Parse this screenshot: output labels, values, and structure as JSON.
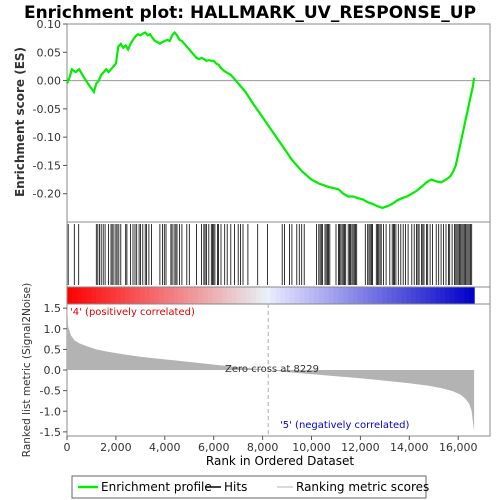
{
  "chart_data": {
    "type": "line",
    "title": "Enrichment plot: HALLMARK_UV_RESPONSE_UP",
    "colors": {
      "es_line": "#00ee00",
      "hit": "#000000",
      "metric_fill": "#b3b3b3",
      "positive_text": "#dd0000",
      "negative_text": "#0000cc"
    },
    "es_panel": {
      "ylabel": "Enrichment score (ES)",
      "ylim": [
        -0.25,
        0.1
      ],
      "yticks": [
        "0.10",
        "0.05",
        "0.00",
        "-0.05",
        "-0.10",
        "-0.15",
        "-0.20"
      ],
      "ytick_values": [
        0.1,
        0.05,
        0.0,
        -0.05,
        -0.1,
        -0.15,
        -0.2
      ],
      "grid": false,
      "series": [
        {
          "name": "Enrichment profile",
          "x": [
            0,
            100,
            200,
            350,
            500,
            700,
            900,
            1100,
            1200,
            1300,
            1400,
            1500,
            1600,
            1700,
            1800,
            1900,
            2000,
            2100,
            2200,
            2300,
            2400,
            2500,
            2600,
            2700,
            2800,
            2900,
            3000,
            3100,
            3200,
            3300,
            3400,
            3500,
            3600,
            3700,
            3800,
            3900,
            4000,
            4100,
            4200,
            4300,
            4400,
            4500,
            4600,
            4700,
            4800,
            4900,
            5000,
            5100,
            5200,
            5300,
            5400,
            5500,
            5600,
            5700,
            5800,
            5900,
            6000,
            6100,
            6200,
            6300,
            6400,
            6500,
            6700,
            7000,
            7300,
            7600,
            8000,
            8400,
            8800,
            9200,
            9600,
            10000,
            10300,
            10500,
            10700,
            10900,
            11100,
            11300,
            11500,
            11700,
            11900,
            12100,
            12300,
            12500,
            12700,
            12900,
            13100,
            13300,
            13500,
            13700,
            13900,
            14100,
            14300,
            14500,
            14700,
            14900,
            15100,
            15300,
            15500,
            15600,
            15700,
            15800,
            15900,
            16000,
            16100,
            16200,
            16300,
            16400,
            16500,
            16600,
            16650
          ],
          "values": [
            -0.005,
            0.005,
            0.02,
            0.015,
            0.02,
            0.005,
            -0.008,
            -0.02,
            -0.005,
            0.0,
            0.01,
            0.015,
            0.02,
            0.015,
            0.02,
            0.025,
            0.03,
            0.06,
            0.065,
            0.058,
            0.062,
            0.055,
            0.065,
            0.072,
            0.078,
            0.082,
            0.08,
            0.083,
            0.085,
            0.08,
            0.082,
            0.075,
            0.07,
            0.068,
            0.065,
            0.068,
            0.07,
            0.072,
            0.07,
            0.08,
            0.085,
            0.08,
            0.072,
            0.07,
            0.065,
            0.06,
            0.055,
            0.05,
            0.045,
            0.04,
            0.038,
            0.04,
            0.038,
            0.035,
            0.036,
            0.035,
            0.035,
            0.03,
            0.028,
            0.022,
            0.018,
            0.015,
            0.01,
            -0.005,
            -0.02,
            -0.04,
            -0.065,
            -0.09,
            -0.115,
            -0.14,
            -0.16,
            -0.175,
            -0.182,
            -0.185,
            -0.188,
            -0.19,
            -0.192,
            -0.2,
            -0.205,
            -0.205,
            -0.208,
            -0.21,
            -0.215,
            -0.218,
            -0.222,
            -0.225,
            -0.222,
            -0.218,
            -0.212,
            -0.208,
            -0.205,
            -0.2,
            -0.195,
            -0.188,
            -0.18,
            -0.175,
            -0.178,
            -0.18,
            -0.175,
            -0.172,
            -0.168,
            -0.16,
            -0.15,
            -0.13,
            -0.11,
            -0.09,
            -0.07,
            -0.05,
            -0.03,
            -0.01,
            0.005
          ]
        }
      ]
    },
    "hits_panel": {
      "hit_ranks": [
        50,
        300,
        480,
        1200,
        1260,
        1330,
        1400,
        1480,
        1560,
        1700,
        1800,
        1850,
        1920,
        2000,
        2050,
        2120,
        2200,
        2400,
        2450,
        2600,
        2700,
        2780,
        2850,
        2950,
        3000,
        3100,
        3200,
        3250,
        3350,
        3450,
        3800,
        3900,
        3980,
        4050,
        4250,
        4300,
        4380,
        4450,
        4500,
        4600,
        4700,
        4900,
        5000,
        5300,
        5500,
        5600,
        5650,
        5700,
        5800,
        5900,
        5950,
        6000,
        6050,
        6150,
        6200,
        6300,
        6450,
        6550,
        6700,
        6850,
        7000,
        7100,
        7200,
        7400,
        7800,
        8200,
        8800,
        8900,
        9100,
        9200,
        9400,
        9500,
        9600,
        9700,
        10200,
        10300,
        10350,
        10400,
        10450,
        10550,
        10600,
        10650,
        10700,
        10750,
        11000,
        11100,
        11150,
        11200,
        11250,
        11300,
        11350,
        11400,
        11500,
        11550,
        11600,
        11650,
        11700,
        11750,
        11800,
        11850,
        12200,
        12300,
        12350,
        12400,
        12450,
        12500,
        12650,
        12700,
        12750,
        12800,
        12850,
        12950,
        13050,
        13200,
        13300,
        13350,
        13400,
        13450,
        13550,
        13650,
        13750,
        13850,
        13950,
        14100,
        14200,
        14300,
        14350,
        14400,
        14500,
        14550,
        14600,
        14700,
        14750,
        14850,
        14950,
        15100,
        15200,
        15300,
        15400,
        15500,
        15600,
        15650,
        15750,
        15850,
        15900,
        15950,
        16000,
        16050,
        16100,
        16150,
        16200,
        16250,
        16300,
        16350,
        16400,
        16450,
        16500,
        16550
      ]
    },
    "metric_panel": {
      "ylabel": "Ranked list metric (Signal2Noise)",
      "ylim": [
        -1.6,
        1.6
      ],
      "yticks": [
        "1.5",
        "1.0",
        "0.5",
        "0.0",
        "-0.5",
        "-1.0",
        "-1.5"
      ],
      "ytick_values": [
        1.5,
        1.0,
        0.5,
        0.0,
        -0.5,
        -1.0,
        -1.5
      ],
      "x": [
        0,
        50,
        150,
        300,
        500,
        800,
        1200,
        1700,
        2300,
        3000,
        3800,
        4600,
        5400,
        6200,
        7000,
        7600,
        8229,
        9000,
        10000,
        11000,
        12000,
        13000,
        14000,
        14800,
        15400,
        15800,
        16100,
        16300,
        16450,
        16550,
        16650
      ],
      "values": [
        1.6,
        1.05,
        0.85,
        0.72,
        0.65,
        0.58,
        0.5,
        0.44,
        0.38,
        0.32,
        0.27,
        0.22,
        0.17,
        0.12,
        0.07,
        0.04,
        0.0,
        -0.05,
        -0.1,
        -0.15,
        -0.2,
        -0.26,
        -0.32,
        -0.38,
        -0.45,
        -0.52,
        -0.6,
        -0.7,
        -0.82,
        -1.0,
        -1.5
      ],
      "annotations": {
        "positive": "'4' (positively correlated)",
        "negative": "'5' (negatively correlated)",
        "zero_cross": "Zero cross at 8229",
        "zero_cross_rank": 8229
      }
    },
    "xaxis": {
      "xlabel": "Rank in Ordered Dataset",
      "xlim": [
        0,
        17300
      ],
      "xticks": [
        "0",
        "2,000",
        "4,000",
        "6,000",
        "8,000",
        "10,000",
        "12,000",
        "14,000",
        "16,000"
      ],
      "xtick_values": [
        0,
        2000,
        4000,
        6000,
        8000,
        10000,
        12000,
        14000,
        16000
      ]
    },
    "legend": {
      "placement": "bottom",
      "items": [
        "Enrichment profile",
        "Hits",
        "Ranking metric scores"
      ]
    }
  }
}
